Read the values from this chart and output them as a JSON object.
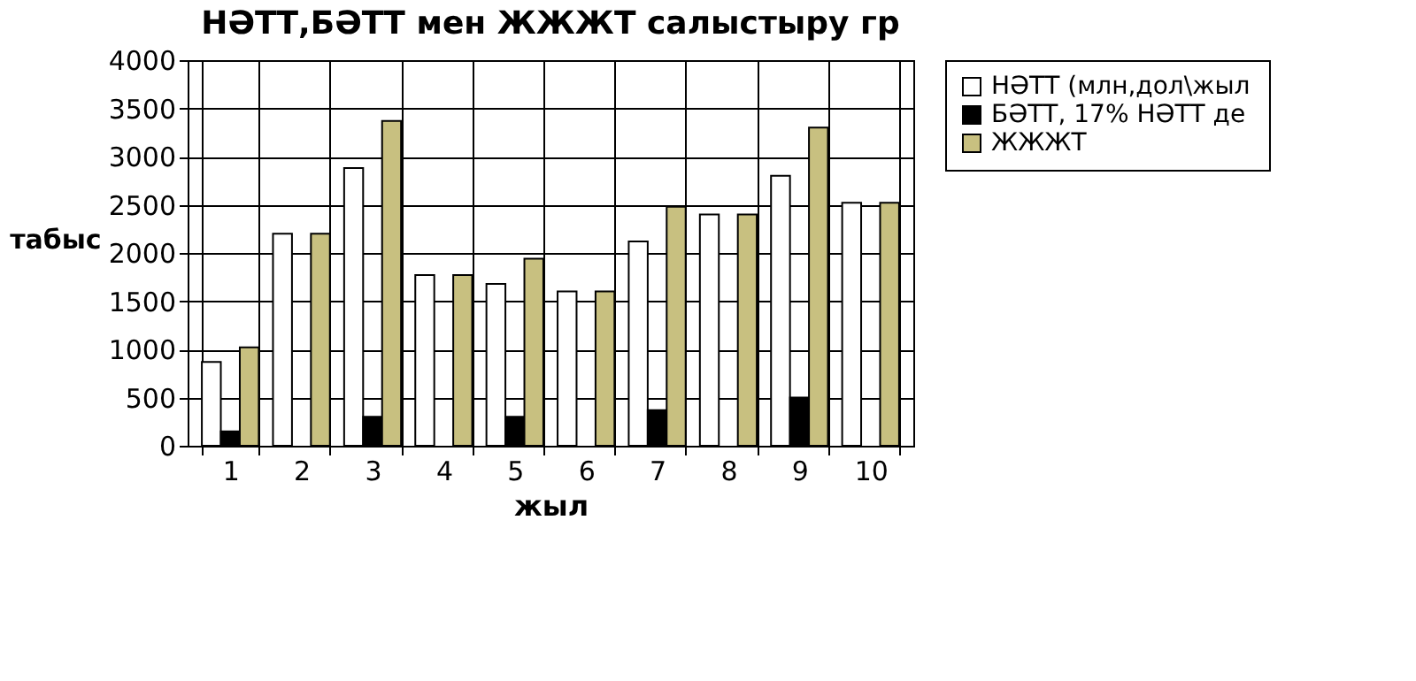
{
  "chart_data": {
    "type": "bar",
    "title": "НӘТТ,БӘТТ мен ЖЖЖТ салыстыру гр",
    "xlabel": "жыл",
    "ylabel": "табыс",
    "categories": [
      "1",
      "2",
      "3",
      "4",
      "5",
      "6",
      "7",
      "8",
      "9",
      "10"
    ],
    "series": [
      {
        "name": "НӘТТ (млн,дол\\жыл",
        "color": "#ffffff",
        "values": [
          870,
          2200,
          2880,
          1770,
          1680,
          1600,
          2120,
          2400,
          2800,
          2520
        ]
      },
      {
        "name": "БӘТТ, 17%  НӘТТ де",
        "color": "#000000",
        "values": [
          150,
          null,
          300,
          null,
          300,
          null,
          370,
          null,
          500,
          null
        ]
      },
      {
        "name": "ЖЖЖТ",
        "color": "#c8c080",
        "values": [
          1020,
          2200,
          3370,
          1770,
          1940,
          1600,
          2480,
          2400,
          3300,
          2520
        ]
      }
    ],
    "ylim": [
      0,
      4000
    ],
    "yticks": [
      0,
      500,
      1000,
      1500,
      2000,
      2500,
      3000,
      3500,
      4000
    ],
    "grid": true,
    "legend": "right"
  }
}
